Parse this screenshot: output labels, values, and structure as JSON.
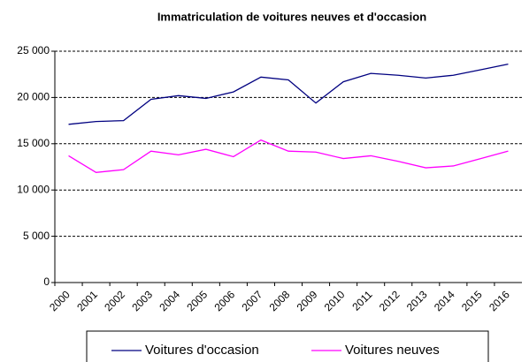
{
  "chart_data": {
    "type": "line",
    "title": "Immatriculation de voitures neuves et d'occasion",
    "categories": [
      "2000",
      "2001",
      "2002",
      "2003",
      "2004",
      "2005",
      "2006",
      "2007",
      "2008",
      "2009",
      "2010",
      "2011",
      "2012",
      "2013",
      "2014",
      "2015",
      "2016"
    ],
    "series": [
      {
        "name": "Voitures d'occasion",
        "color": "#000080",
        "values": [
          17100,
          17400,
          17500,
          19800,
          20200,
          19900,
          20600,
          22200,
          21900,
          19400,
          21700,
          22600,
          22400,
          22100,
          22400,
          23000,
          23600
        ]
      },
      {
        "name": "Voitures neuves",
        "color": "#ff00ff",
        "values": [
          13700,
          11900,
          12200,
          14200,
          13800,
          14400,
          13600,
          15400,
          14200,
          14100,
          13400,
          13700,
          13100,
          12400,
          12600,
          13400,
          14200
        ]
      }
    ],
    "ylim": [
      0,
      25000
    ],
    "yticks": [
      0,
      {
        "value": 5000,
        "label": "5 000"
      },
      {
        "value": 10000,
        "label": "10 000"
      },
      {
        "value": 15000,
        "label": "15 000"
      },
      {
        "value": 20000,
        "label": "20 000"
      },
      {
        "value": 25000,
        "label": "25 000"
      }
    ],
    "grid": true,
    "legend": "bottom"
  }
}
